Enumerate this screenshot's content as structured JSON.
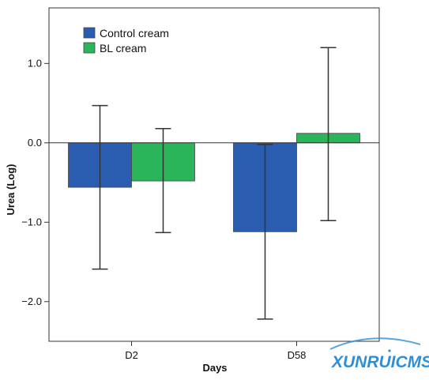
{
  "chart_data": {
    "type": "bar",
    "categories": [
      "D2",
      "D58"
    ],
    "series": [
      {
        "name": "Control cream",
        "values": [
          -0.56,
          -1.12
        ],
        "error_low": [
          -1.59,
          -2.22
        ],
        "error_high": [
          0.47,
          -0.02
        ]
      },
      {
        "name": "BL cream",
        "values": [
          -0.48,
          0.12
        ],
        "error_low": [
          -1.13,
          -0.98
        ],
        "error_high": [
          0.18,
          1.2
        ]
      }
    ],
    "xlabel": "Days",
    "ylabel": "Urea (Log)",
    "ylim": [
      -2.5,
      1.7
    ],
    "yticks": [
      {
        "value": 1.0,
        "label": "1.0"
      },
      {
        "value": 0.0,
        "label": "0.0"
      },
      {
        "value": -1.0,
        "label": "−1.0"
      },
      {
        "value": -2.0,
        "label": "−2.0"
      }
    ],
    "legend_position": "top-left",
    "grid": false,
    "reference_line": 0
  },
  "colors": {
    "Control cream": "#2a5db0",
    "BL cream": "#2ab55a",
    "watermark": "#2f8fd6"
  },
  "watermark": {
    "text": "XUNRUICMS"
  }
}
